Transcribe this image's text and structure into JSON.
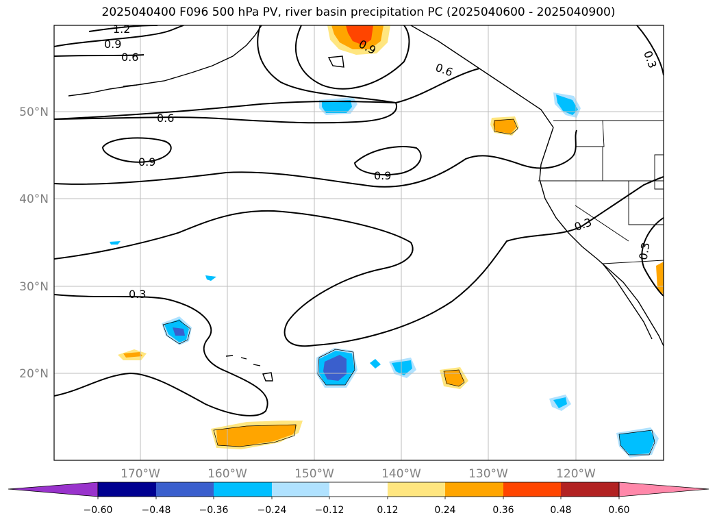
{
  "title": "2025040400 F096 500 hPa PV, river basin precipitation PC (2025040600 - 2025040900)",
  "map": {
    "lat_labels": [
      "50°N",
      "40°N",
      "30°N",
      "20°N"
    ],
    "lon_labels": [
      "170°W",
      "160°W",
      "150°W",
      "140°W",
      "130°W",
      "120°W"
    ],
    "contour_labels": [
      "1.2",
      "0.9",
      "0.6",
      "0.9",
      "0.6",
      "0.6",
      "0.9",
      "0.9",
      "0.3",
      "0.3",
      "0.3",
      "0.3"
    ]
  },
  "colorbar": {
    "ticks": [
      "−0.60",
      "−0.48",
      "−0.36",
      "−0.24",
      "−0.12",
      "0.12",
      "0.24",
      "0.36",
      "0.48",
      "0.60"
    ],
    "colors": [
      "#9933cc",
      "#000090",
      "#3a5fcd",
      "#00bfff",
      "#b0e2ff",
      "#ffffff",
      "#ffe680",
      "#ffa500",
      "#ff4500",
      "#b22222",
      "#ff88aa"
    ]
  }
}
